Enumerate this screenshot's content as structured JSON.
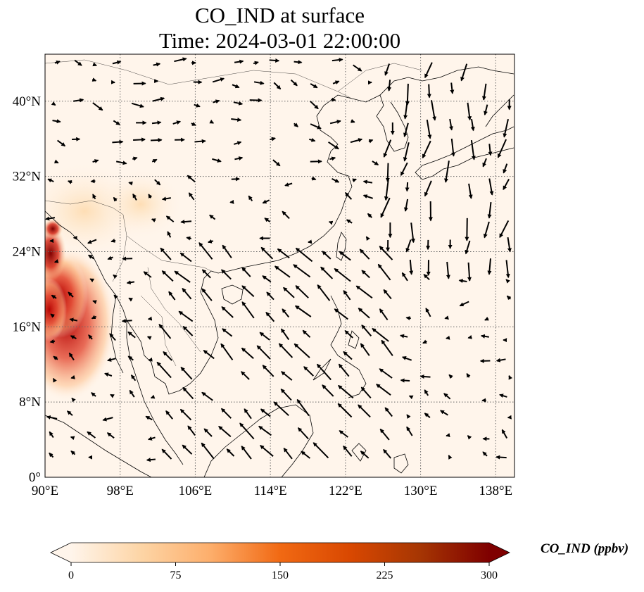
{
  "title": {
    "line1": "CO_IND at surface",
    "line2": "Time: 2024-03-01 22:00:00"
  },
  "map": {
    "type": "geographic map with filled concentration field and wind vectors",
    "lon_range": [
      90,
      140
    ],
    "lat_range": [
      0,
      45
    ],
    "x_ticks": [
      "90°E",
      "98°E",
      "106°E",
      "114°E",
      "122°E",
      "130°E",
      "138°E"
    ],
    "x_tick_values": [
      90,
      98,
      106,
      114,
      122,
      130,
      138
    ],
    "y_ticks": [
      "0°",
      "8°N",
      "16°N",
      "24°N",
      "32°N",
      "40°N"
    ],
    "y_tick_values": [
      0,
      8,
      16,
      24,
      32,
      40
    ],
    "grid": "dotted",
    "background_color": "#fff5eb",
    "high_concentration_region": "western edge (Myanmar / Bay of Bengal area)"
  },
  "colorbar": {
    "label": "CO_IND (ppbv)",
    "ticks": [
      "0",
      "75",
      "150",
      "225",
      "300"
    ],
    "range": [
      0,
      300
    ],
    "colormap": "OrRd",
    "extend": "both",
    "colors": [
      "#fff5eb",
      "#fdd5a6",
      "#fdae6b",
      "#f16913",
      "#d94801",
      "#a63603",
      "#7f0000"
    ]
  }
}
